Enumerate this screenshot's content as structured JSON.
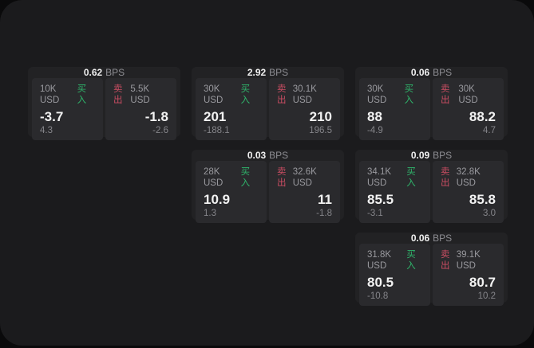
{
  "labels": {
    "bps_unit": "BPS",
    "buy": "买入",
    "sell": "卖出"
  },
  "colors": {
    "buy_green": "#2fb56b",
    "sell_red": "#ca4d62",
    "window_bg": "#1b1b1d",
    "card_bg": "#222224",
    "panel_bg": "#2a2a2d"
  },
  "cards": [
    {
      "bps": "0.62",
      "buy": {
        "size": "10K USD",
        "price": "-3.7",
        "delta": "4.3"
      },
      "sell": {
        "size": "5.5K USD",
        "price": "-1.8",
        "delta": "-2.6"
      }
    },
    {
      "bps": "2.92",
      "buy": {
        "size": "30K USD",
        "price": "201",
        "delta": "-188.1"
      },
      "sell": {
        "size": "30.1K USD",
        "price": "210",
        "delta": "196.5"
      }
    },
    {
      "bps": "0.06",
      "buy": {
        "size": "30K USD",
        "price": "88",
        "delta": "-4.9"
      },
      "sell": {
        "size": "30K USD",
        "price": "88.2",
        "delta": "4.7"
      }
    },
    {
      "bps": "0.03",
      "buy": {
        "size": "28K USD",
        "price": "10.9",
        "delta": "1.3"
      },
      "sell": {
        "size": "32.6K USD",
        "price": "11",
        "delta": "-1.8"
      }
    },
    {
      "bps": "0.09",
      "buy": {
        "size": "34.1K USD",
        "price": "85.5",
        "delta": "-3.1"
      },
      "sell": {
        "size": "32.8K USD",
        "price": "85.8",
        "delta": "3.0"
      }
    },
    {
      "bps": "0.06",
      "buy": {
        "size": "31.8K USD",
        "price": "80.5",
        "delta": "-10.8"
      },
      "sell": {
        "size": "39.1K USD",
        "price": "80.7",
        "delta": "10.2"
      }
    }
  ]
}
